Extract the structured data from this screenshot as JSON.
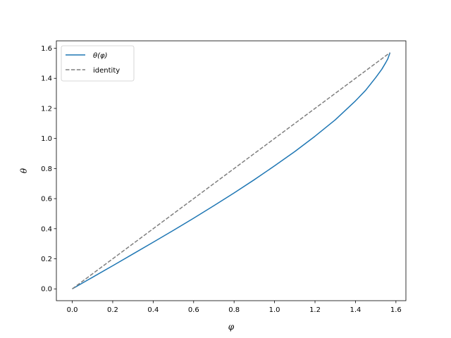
{
  "chart_data": {
    "type": "line",
    "title": "",
    "xlabel": "φ",
    "ylabel": "θ",
    "xlim": [
      -0.0785,
      1.6493
    ],
    "ylim": [
      -0.0785,
      1.6493
    ],
    "xticks": [
      0.0,
      0.2,
      0.4,
      0.6,
      0.8,
      1.0,
      1.2,
      1.4,
      1.6
    ],
    "xtick_labels": [
      "0.0",
      "0.2",
      "0.4",
      "0.6",
      "0.8",
      "1.0",
      "1.2",
      "1.4",
      "1.6"
    ],
    "yticks": [
      0.0,
      0.2,
      0.4,
      0.6,
      0.8,
      1.0,
      1.2,
      1.4,
      1.6
    ],
    "ytick_labels": [
      "0.0",
      "0.2",
      "0.4",
      "0.6",
      "0.8",
      "1.0",
      "1.2",
      "1.4",
      "1.6"
    ],
    "grid": false,
    "legend_position": "top-left",
    "series": [
      {
        "name": "θ(φ)",
        "style": "solid",
        "color": "#1f77b4",
        "x": [
          0.0,
          0.1,
          0.2,
          0.3,
          0.4,
          0.5,
          0.6,
          0.7,
          0.8,
          0.9,
          1.0,
          1.1,
          1.2,
          1.3,
          1.4,
          1.45,
          1.5,
          1.53,
          1.55,
          1.56,
          1.5708
        ],
        "y": [
          0.0,
          0.077,
          0.154,
          0.232,
          0.31,
          0.389,
          0.47,
          0.553,
          0.638,
          0.726,
          0.818,
          0.913,
          1.015,
          1.124,
          1.25,
          1.32,
          1.405,
          1.46,
          1.505,
          1.53,
          1.5708
        ]
      },
      {
        "name": "identity",
        "style": "dashed",
        "color": "#7f7f7f",
        "x": [
          0.0,
          1.5708
        ],
        "y": [
          0.0,
          1.5708
        ]
      }
    ]
  }
}
